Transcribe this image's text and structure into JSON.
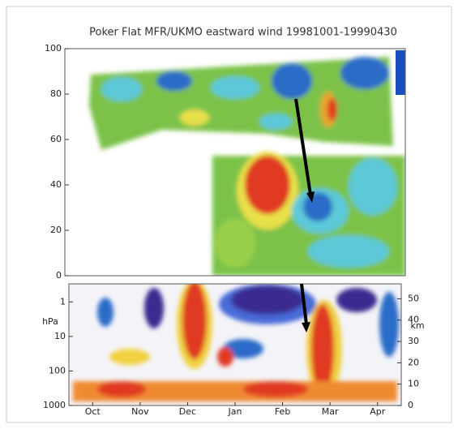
{
  "chart_data": [
    {
      "type": "contour",
      "title": "Poker Flat MFR/UKMO eastward wind  19981001-19990430",
      "ylim": [
        0,
        100
      ],
      "yticks": [
        0,
        20,
        40,
        60,
        80,
        100
      ]
    },
    {
      "type": "contour",
      "categories": [
        "Oct",
        "Nov",
        "Dec",
        "Jan",
        "Feb",
        "Mar",
        "Apr"
      ],
      "ylabel": "hPa",
      "yscale": "log",
      "ylim": [
        1000,
        0.3
      ],
      "yticks": [
        1,
        10,
        100,
        1000
      ],
      "y2label": "km",
      "y2lim": [
        0,
        57
      ],
      "y2ticks": [
        0,
        10,
        20,
        30,
        40,
        50
      ]
    }
  ]
}
